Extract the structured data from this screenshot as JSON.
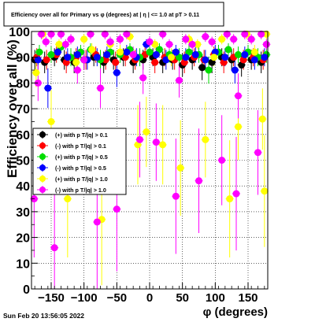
{
  "chart_data": {
    "type": "scatter",
    "title": "Efficiency over all for Primary vs φ (degrees) at | η | <= 1.0 at pT > 0.11",
    "xlabel": "φ (degrees)",
    "ylabel": "Efficiency over all (%)",
    "xlim": [
      -180,
      180
    ],
    "ylim": [
      0,
      100
    ],
    "x_ticks": [
      -150,
      -100,
      -50,
      0,
      50,
      100,
      150
    ],
    "x_tick_labels": [
      "−150",
      "−100",
      "−50",
      "0",
      "50",
      "100",
      "150"
    ],
    "y_ticks": [
      0,
      10,
      20,
      30,
      40,
      50,
      60,
      70,
      80,
      90,
      100
    ],
    "y_tick_labels": [
      "0",
      "10",
      "20",
      "30",
      "40",
      "50",
      "60",
      "70",
      "80",
      "90",
      "100"
    ],
    "grid": true,
    "legend_position": "left-middle",
    "footer": "Sun Feb 20 13:56:05 2022",
    "series": [
      {
        "name": "(+) with p T/|q| > 0.1",
        "color": "#000000",
        "points": [
          [
            -175,
            89
          ],
          [
            -160,
            88
          ],
          [
            -145,
            90
          ],
          [
            -130,
            89
          ],
          [
            -115,
            88
          ],
          [
            -100,
            89
          ],
          [
            -85,
            90
          ],
          [
            -70,
            88
          ],
          [
            -55,
            89
          ],
          [
            -40,
            90
          ],
          [
            -25,
            88
          ],
          [
            -10,
            89
          ],
          [
            5,
            90
          ],
          [
            20,
            88
          ],
          [
            35,
            89
          ],
          [
            50,
            87
          ],
          [
            65,
            89
          ],
          [
            80,
            86
          ],
          [
            95,
            88
          ],
          [
            110,
            90
          ],
          [
            125,
            89
          ],
          [
            140,
            87
          ],
          [
            155,
            89
          ],
          [
            170,
            88
          ]
        ]
      },
      {
        "name": "(-) with p T/|q| > 0.1",
        "color": "#ff0000",
        "points": [
          [
            -172,
            90
          ],
          [
            -157,
            89
          ],
          [
            -142,
            91
          ],
          [
            -127,
            88
          ],
          [
            -112,
            90
          ],
          [
            -97,
            89
          ],
          [
            -82,
            91
          ],
          [
            -67,
            89
          ],
          [
            -52,
            88
          ],
          [
            -37,
            90
          ],
          [
            -22,
            89
          ],
          [
            -7,
            91
          ],
          [
            8,
            88
          ],
          [
            23,
            90
          ],
          [
            38,
            89
          ],
          [
            53,
            88
          ],
          [
            68,
            90
          ],
          [
            83,
            89
          ],
          [
            98,
            91
          ],
          [
            113,
            88
          ],
          [
            128,
            90
          ],
          [
            143,
            89
          ],
          [
            158,
            90
          ],
          [
            173,
            89
          ]
        ]
      },
      {
        "name": "(+) with p T/|q| > 0.5",
        "color": "#00dd00",
        "points": [
          [
            -168,
            92
          ],
          [
            -150,
            91
          ],
          [
            -135,
            94
          ],
          [
            -120,
            90
          ],
          [
            -105,
            92
          ],
          [
            -90,
            93
          ],
          [
            -75,
            89
          ],
          [
            -60,
            92
          ],
          [
            -45,
            91
          ],
          [
            -30,
            93
          ],
          [
            -15,
            90
          ],
          [
            0,
            92
          ],
          [
            15,
            93
          ],
          [
            30,
            91
          ],
          [
            45,
            90
          ],
          [
            60,
            92
          ],
          [
            75,
            91
          ],
          [
            90,
            85
          ],
          [
            105,
            92
          ],
          [
            120,
            93
          ],
          [
            135,
            91
          ],
          [
            150,
            92
          ],
          [
            165,
            90
          ],
          [
            178,
            91
          ]
        ]
      },
      {
        "name": "(-) with p T/|q| > 0.5",
        "color": "#0000ff",
        "points": [
          [
            -170,
            89
          ],
          [
            -155,
            78
          ],
          [
            -140,
            92
          ],
          [
            -125,
            90
          ],
          [
            -110,
            91
          ],
          [
            -95,
            89
          ],
          [
            -80,
            90
          ],
          [
            -65,
            91
          ],
          [
            -50,
            84
          ],
          [
            -35,
            92
          ],
          [
            -20,
            90
          ],
          [
            -5,
            95
          ],
          [
            10,
            91
          ],
          [
            25,
            89
          ],
          [
            40,
            92
          ],
          [
            55,
            90
          ],
          [
            70,
            91
          ],
          [
            85,
            89
          ],
          [
            100,
            92
          ],
          [
            115,
            90
          ],
          [
            130,
            85
          ],
          [
            145,
            91
          ],
          [
            160,
            89
          ],
          [
            175,
            90
          ]
        ]
      },
      {
        "name": "(+) with p T/|q| > 1.0",
        "color": "#ffff00",
        "points": [
          [
            -173,
            84
          ],
          [
            -163,
            99
          ],
          [
            -150,
            65
          ],
          [
            -138,
            95
          ],
          [
            -125,
            35
          ],
          [
            -112,
            88
          ],
          [
            -100,
            97
          ],
          [
            -88,
            93
          ],
          [
            -73,
            27
          ],
          [
            -60,
            95
          ],
          [
            -45,
            92
          ],
          [
            -30,
            98
          ],
          [
            -18,
            56
          ],
          [
            -5,
            61
          ],
          [
            8,
            95
          ],
          [
            20,
            56
          ],
          [
            33,
            90
          ],
          [
            47,
            47
          ],
          [
            60,
            97
          ],
          [
            73,
            95
          ],
          [
            85,
            58
          ],
          [
            98,
            90
          ],
          [
            110,
            97
          ],
          [
            122,
            35
          ],
          [
            135,
            63
          ],
          [
            148,
            99
          ],
          [
            160,
            92
          ],
          [
            172,
            66
          ],
          [
            175,
            38
          ],
          [
            178,
            99
          ]
        ]
      },
      {
        "name": "(-) with p T/|q| > 1.0",
        "color": "#ff00ff",
        "points": [
          [
            -176,
            35
          ],
          [
            -170,
            80
          ],
          [
            -165,
            99
          ],
          [
            -158,
            96
          ],
          [
            -150,
            99
          ],
          [
            -145,
            16
          ],
          [
            -135,
            99
          ],
          [
            -128,
            95
          ],
          [
            -120,
            97
          ],
          [
            -110,
            85
          ],
          [
            -100,
            89
          ],
          [
            -90,
            99
          ],
          [
            -80,
            26
          ],
          [
            -75,
            78
          ],
          [
            -68,
            99
          ],
          [
            -60,
            96
          ],
          [
            -50,
            31
          ],
          [
            -45,
            97
          ],
          [
            -35,
            99
          ],
          [
            -25,
            91
          ],
          [
            -15,
            58
          ],
          [
            -10,
            82
          ],
          [
            0,
            96
          ],
          [
            10,
            57
          ],
          [
            20,
            99
          ],
          [
            30,
            95
          ],
          [
            40,
            36
          ],
          [
            45,
            81
          ],
          [
            55,
            97
          ],
          [
            65,
            95
          ],
          [
            75,
            42
          ],
          [
            85,
            98
          ],
          [
            95,
            96
          ],
          [
            110,
            50
          ],
          [
            118,
            99
          ],
          [
            128,
            97
          ],
          [
            132,
            37
          ],
          [
            135,
            75
          ],
          [
            145,
            99
          ],
          [
            155,
            97
          ],
          [
            165,
            53
          ],
          [
            170,
            99
          ],
          [
            178,
            95
          ]
        ]
      }
    ]
  }
}
